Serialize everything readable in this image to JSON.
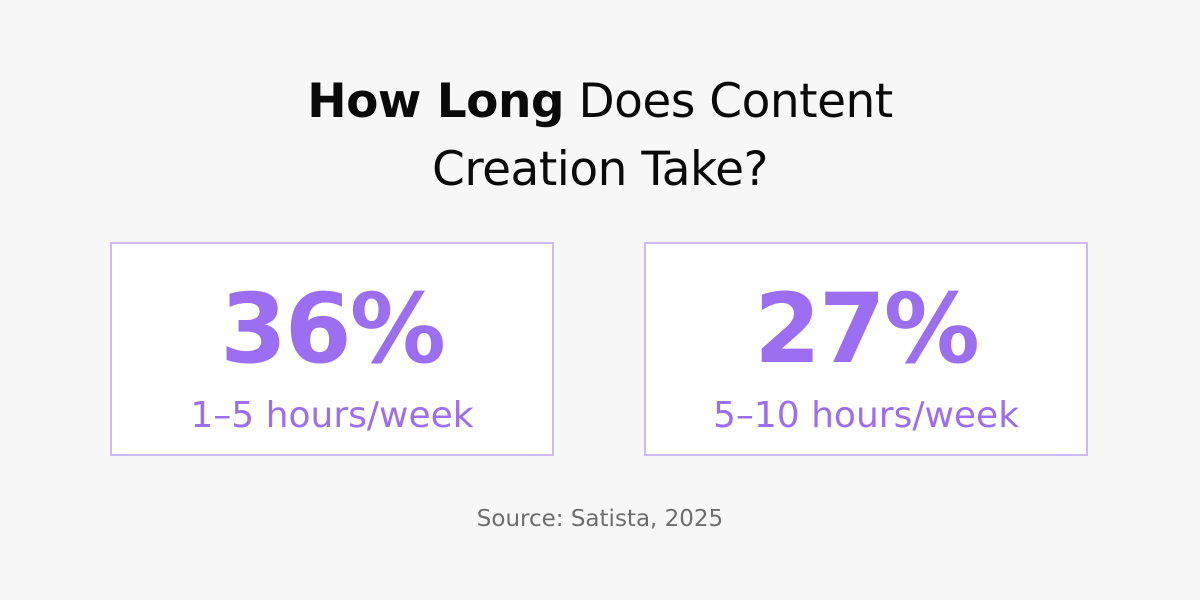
{
  "title": {
    "bold_part": "How Long",
    "regular_part_line1": " Does Content",
    "line2": "Creation Take?"
  },
  "stats": [
    {
      "value": "36%",
      "label": "1–5 hours/week"
    },
    {
      "value": "27%",
      "label": "5–10 hours/week"
    }
  ],
  "source": "Source: Satista, 2025",
  "colors": {
    "accent": "#9c6ff2",
    "card_border": "#cdbaf7",
    "background": "#f7f7f7",
    "title": "#0a0a0a",
    "source": "#6e6e6e"
  }
}
